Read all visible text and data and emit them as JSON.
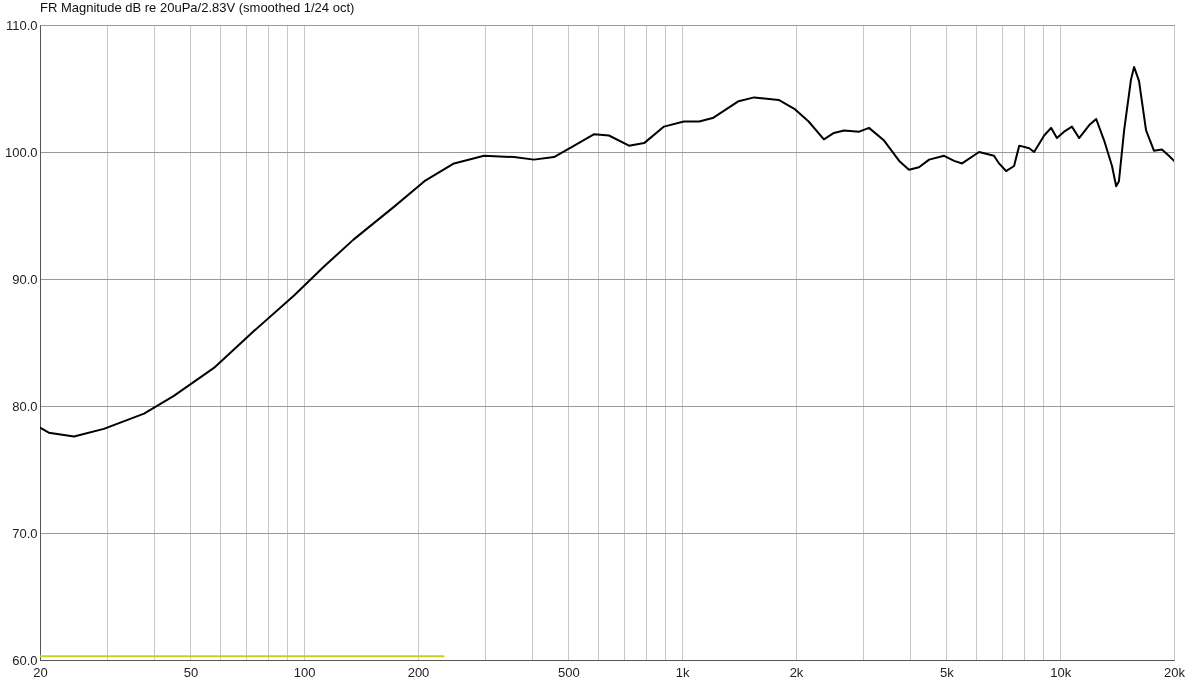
{
  "chart_data": {
    "type": "line",
    "title": "FR Magnitude dB re 20uPa/2.83V (smoothed 1/24 oct)",
    "log": "x",
    "grid": true,
    "xlim": [
      20,
      20000
    ],
    "ylim": [
      60,
      110
    ],
    "xticks": [
      20,
      {
        "value": 30,
        "label": null
      },
      {
        "value": 40,
        "label": null
      },
      50,
      {
        "value": 60,
        "label": null
      },
      {
        "value": 70,
        "label": null
      },
      {
        "value": 80,
        "label": null
      },
      {
        "value": 90,
        "label": null
      },
      100,
      200,
      {
        "value": 300,
        "label": null
      },
      {
        "value": 400,
        "label": null
      },
      500,
      {
        "value": 600,
        "label": null
      },
      {
        "value": 700,
        "label": null
      },
      {
        "value": 800,
        "label": null
      },
      {
        "value": 900,
        "label": null
      },
      {
        "value": 1000,
        "label": "1k"
      },
      {
        "value": 2000,
        "label": "2k"
      },
      {
        "value": 3000,
        "label": null
      },
      {
        "value": 4000,
        "label": null
      },
      {
        "value": 5000,
        "label": "5k"
      },
      {
        "value": 6000,
        "label": null
      },
      {
        "value": 7000,
        "label": null
      },
      {
        "value": 8000,
        "label": null
      },
      {
        "value": 9000,
        "label": null
      },
      {
        "value": 10000,
        "label": "10k"
      },
      {
        "value": 20000,
        "label": "20k"
      }
    ],
    "yticks": [
      {
        "value": 60,
        "label": "60.0"
      },
      {
        "value": 70,
        "label": "70.0"
      },
      {
        "value": 80,
        "label": "80.0"
      },
      {
        "value": 90,
        "label": "90.0"
      },
      {
        "value": 100,
        "label": "100.0"
      },
      {
        "value": 110,
        "label": "110.0"
      }
    ],
    "series": [
      {
        "color": "#000000",
        "x": [
          20,
          21.1,
          24.6,
          29.5,
          37.7,
          45.2,
          57.7,
          73.6,
          94,
          113,
          135,
          173,
          208,
          249,
          299,
          359,
          405,
          458,
          518,
          585,
          640,
          723,
          793,
          895,
          1010,
          1110,
          1210,
          1410,
          1550,
          1800,
          1980,
          2160,
          2370,
          2520,
          2680,
          2940,
          3120,
          3420,
          3750,
          3980,
          4230,
          4500,
          4930,
          5240,
          5500,
          6100,
          6680,
          6890,
          7190,
          7550,
          7790,
          8280,
          8530,
          9070,
          9460,
          9800,
          10240,
          10740,
          11220,
          11920,
          12450,
          13070,
          13710,
          14060,
          14300,
          14760,
          15390,
          15680,
          16160,
          16870,
          17700,
          18580,
          19390,
          20000
        ],
        "values": [
          78.3,
          77.9,
          77.6,
          78.2,
          79.4,
          80.8,
          83.0,
          85.9,
          88.7,
          91.0,
          93.1,
          95.7,
          97.7,
          99.1,
          99.7,
          99.6,
          99.4,
          99.6,
          100.5,
          101.4,
          101.3,
          100.5,
          100.7,
          102.0,
          102.4,
          102.4,
          102.7,
          104.0,
          104.3,
          104.1,
          103.4,
          102.4,
          101.0,
          101.5,
          101.7,
          101.6,
          101.9,
          100.9,
          99.3,
          98.6,
          98.8,
          99.4,
          99.7,
          99.3,
          99.1,
          100.0,
          99.7,
          99.1,
          98.5,
          98.9,
          100.5,
          100.3,
          100.0,
          101.3,
          101.9,
          101.1,
          101.6,
          102.0,
          101.1,
          102.1,
          102.6,
          100.9,
          98.9,
          97.3,
          97.7,
          101.7,
          105.7,
          106.7,
          105.6,
          101.7,
          100.1,
          100.2,
          99.7,
          99.3
        ]
      },
      {
        "color": "#c8d21e",
        "x": [
          20,
          234
        ],
        "values": [
          60.3,
          60.3
        ]
      }
    ]
  }
}
